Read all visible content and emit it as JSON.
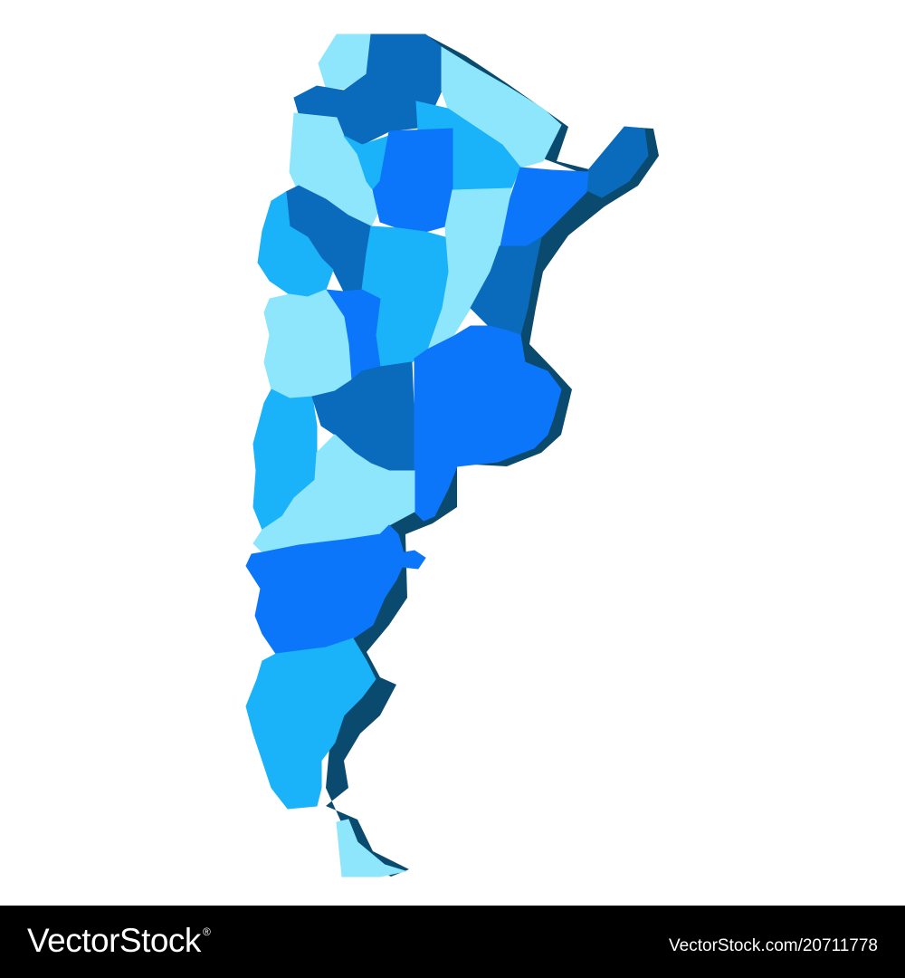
{
  "palette": {
    "shadow": "#0a4a6e",
    "light_cyan": "#8de6fb",
    "sky": "#1ab2f9",
    "medium_blue": "#0c76fb",
    "dark_blue": "#0a6abb"
  },
  "footer": {
    "brand_name": "VectorStock",
    "brand_mark": "®",
    "image_code": "VectorStock.com/20711778"
  }
}
